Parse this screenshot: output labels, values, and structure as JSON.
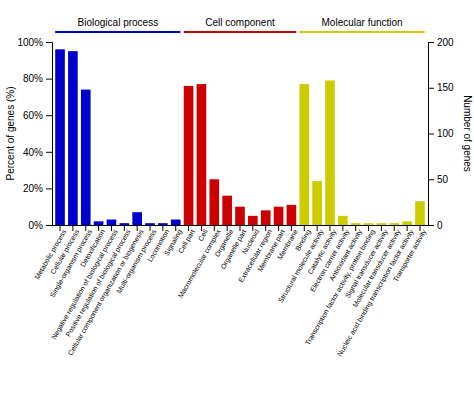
{
  "chart_data": {
    "type": "bar",
    "categories": [
      "Metabolic process",
      "Cellular process",
      "Single-organism process",
      "Detoxification",
      "Negative regulation of biological process",
      "Positive regulation of biological process",
      "Cellular component organization or biogenesis",
      "Multi-organism process",
      "Locomotion",
      "Signaling",
      "Cell part",
      "Cell",
      "Macromolecular complex",
      "Organelle",
      "Organelle part",
      "Nucleoid",
      "Extracellular region",
      "Membrane part",
      "Membrane",
      "Binding",
      "Structural molecule activity",
      "Catalytic activity",
      "Electron carrier activity",
      "Antioxidant activity",
      "Transcription factor activity, protein binding",
      "Signal transducer activity",
      "Molecular transducer activity",
      "Nucleic acid binding transcription factor activity",
      "Transporter activity"
    ],
    "values": [
      96,
      95,
      74,
      2,
      3,
      1,
      7,
      1,
      1,
      3,
      76,
      77,
      25,
      16,
      10,
      5,
      8,
      10,
      11,
      77,
      24,
      79,
      5,
      1,
      1,
      1,
      1,
      2,
      13
    ],
    "colors": [
      "#0000cc",
      "#0000cc",
      "#0000cc",
      "#0000cc",
      "#0000cc",
      "#0000cc",
      "#0000cc",
      "#0000cc",
      "#0000cc",
      "#0000cc",
      "#cc0000",
      "#cc0000",
      "#cc0000",
      "#cc0000",
      "#cc0000",
      "#cc0000",
      "#cc0000",
      "#cc0000",
      "#cc0000",
      "#cccc00",
      "#cccc00",
      "#cccc00",
      "#cccc00",
      "#cccc00",
      "#cccc00",
      "#cccc00",
      "#cccc00",
      "#cccc00",
      "#cccc00"
    ],
    "ylabel": "Percent of genes (%)",
    "ylim": [
      0,
      100
    ],
    "yticks": [
      {
        "value": 0,
        "label": "0%"
      },
      {
        "value": 20,
        "label": "20%"
      },
      {
        "value": 40,
        "label": "40%"
      },
      {
        "value": 60,
        "label": "60%"
      },
      {
        "value": 80,
        "label": "80%"
      },
      {
        "value": 100,
        "label": "100%"
      }
    ],
    "y2label": "Number of genes",
    "y2lim": [
      0,
      200
    ],
    "y2ticks": [
      0,
      50,
      100,
      150,
      200
    ],
    "groups": [
      {
        "name": "Biological process",
        "color": "#0000cc",
        "from": "Metabolic process",
        "to": "Signaling"
      },
      {
        "name": "Cell component",
        "color": "#cc0000",
        "from": "Cell part",
        "to": "Membrane"
      },
      {
        "name": "Molecular function",
        "color": "#cccc00",
        "from": "Binding",
        "to": "Transporter activity"
      }
    ],
    "grid": false
  }
}
